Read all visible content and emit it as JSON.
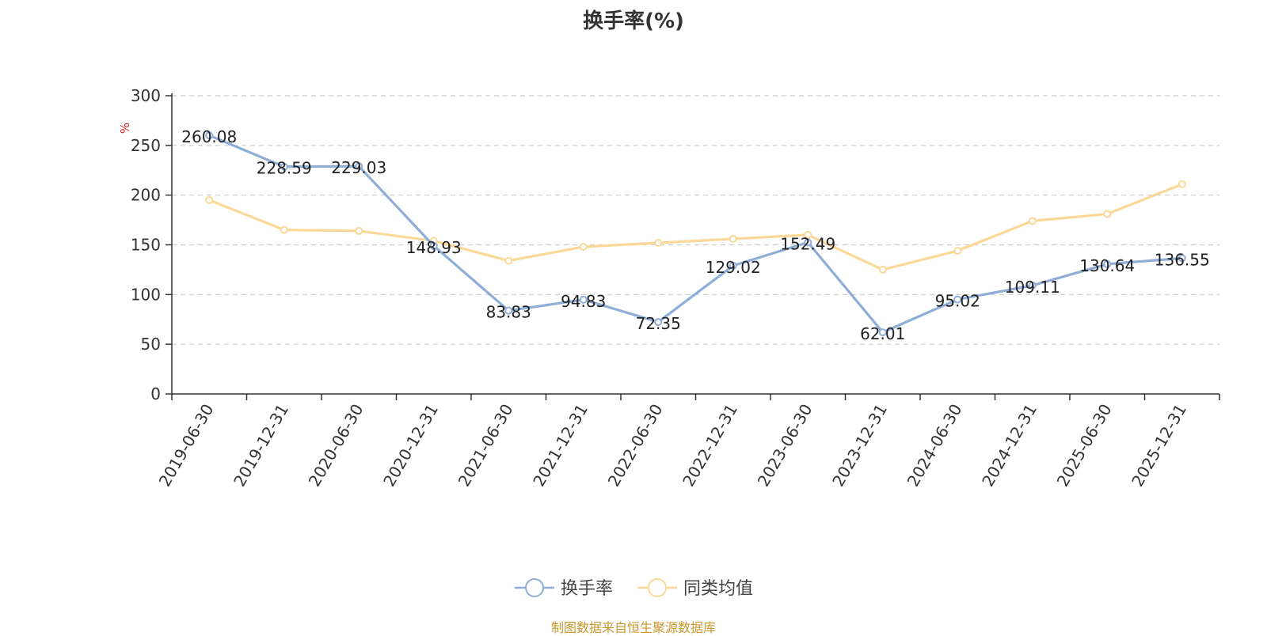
{
  "chart_data": {
    "type": "line",
    "title": "换手率(%)",
    "ylabel": "%",
    "ylim": [
      0,
      300
    ],
    "yticks": [
      0,
      50,
      100,
      150,
      200,
      250,
      300
    ],
    "grid": true,
    "legend_position": "bottom-center",
    "categories": [
      "2019-06-30",
      "2019-12-31",
      "2020-06-30",
      "2020-12-31",
      "2021-06-30",
      "2021-12-31",
      "2022-06-30",
      "2022-12-31",
      "2023-06-30",
      "2023-12-31",
      "2024-06-30",
      "2024-12-31",
      "2025-06-30",
      "2025-12-31"
    ],
    "series": [
      {
        "name": "换手率",
        "color": "#8eaed8",
        "values": [
          260.08,
          228.59,
          229.03,
          148.93,
          83.83,
          94.83,
          72.35,
          129.02,
          152.49,
          62.01,
          95.02,
          109.11,
          130.64,
          136.55
        ],
        "labels": [
          "260.08",
          "228.59",
          "229.03",
          "148.93",
          "83.83",
          "94.83",
          "72.35",
          "129.02",
          "152.49",
          "62.01",
          "95.02",
          "109.11",
          "130.64",
          "136.55"
        ]
      },
      {
        "name": "同类均值",
        "color": "#fcd898",
        "values": [
          195,
          165,
          164,
          154,
          134,
          148,
          152,
          156,
          160,
          125,
          144,
          174,
          181,
          211
        ]
      }
    ]
  },
  "footer": {
    "source": "制图数据来自恒生聚源数据库"
  }
}
